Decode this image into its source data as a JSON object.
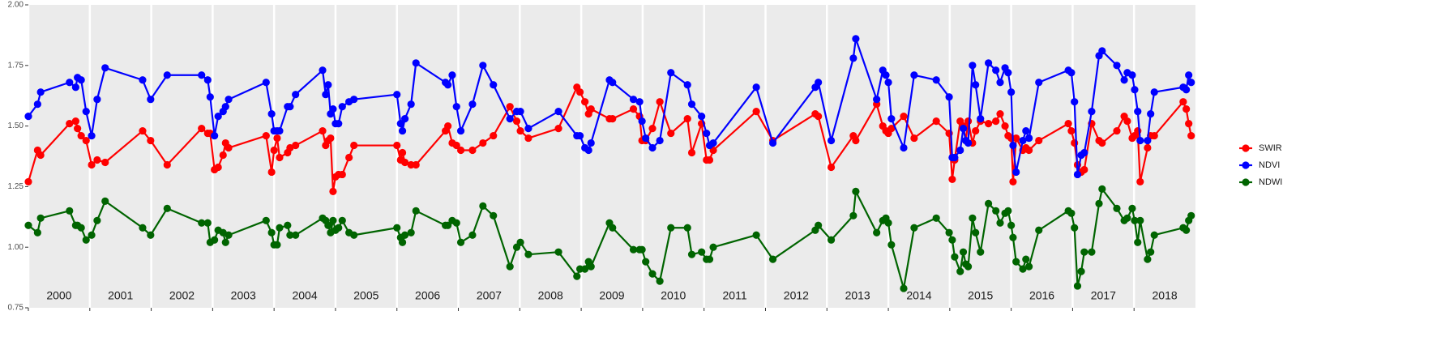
{
  "chart_data": {
    "type": "line",
    "x": [
      2000.0,
      2000.15,
      2000.2,
      2000.67,
      2000.77,
      2000.8,
      2000.86,
      2000.94,
      2001.03,
      2001.12,
      2001.25,
      2001.86,
      2001.99,
      2002.26,
      2002.82,
      2002.92,
      2002.96,
      2003.03,
      2003.09,
      2003.17,
      2003.21,
      2003.26,
      2003.87,
      2003.96,
      2004.0,
      2004.05,
      2004.09,
      2004.22,
      2004.26,
      2004.35,
      2004.79,
      2004.84,
      2004.88,
      2004.92,
      2004.96,
      2005.0,
      2005.05,
      2005.11,
      2005.22,
      2005.3,
      2006.0,
      2006.06,
      2006.09,
      2006.13,
      2006.23,
      2006.31,
      2006.79,
      2006.83,
      2006.9,
      2006.97,
      2007.04,
      2007.23,
      2007.4,
      2007.57,
      2007.84,
      2007.95,
      2008.01,
      2008.14,
      2008.63,
      2008.93,
      2008.98,
      2009.06,
      2009.12,
      2009.16,
      2009.46,
      2009.51,
      2009.85,
      2009.95,
      2009.99,
      2010.05,
      2010.16,
      2010.28,
      2010.46,
      2010.73,
      2010.8,
      2010.96,
      2011.04,
      2011.09,
      2011.15,
      2011.85,
      2012.12,
      2012.81,
      2012.86,
      2013.07,
      2013.43,
      2013.47,
      2013.81,
      2013.91,
      2013.96,
      2014.0,
      2014.05,
      2014.25,
      2014.42,
      2014.78,
      2014.99,
      2015.04,
      2015.08,
      2015.17,
      2015.22,
      2015.26,
      2015.3,
      2015.37,
      2015.42,
      2015.5,
      2015.63,
      2015.75,
      2015.82,
      2015.9,
      2015.95,
      2016.0,
      2016.03,
      2016.08,
      2016.19,
      2016.24,
      2016.29,
      2016.45,
      2016.93,
      2016.98,
      2017.03,
      2017.08,
      2017.14,
      2017.19,
      2017.31,
      2017.43,
      2017.48,
      2017.72,
      2017.84,
      2017.89,
      2017.97,
      2018.01,
      2018.06,
      2018.1,
      2018.22,
      2018.27,
      2018.33,
      2018.8,
      2018.85,
      2018.89,
      2018.93
    ],
    "series": [
      {
        "name": "SWIR",
        "color": "#ff0000",
        "values": [
          1.27,
          1.4,
          1.38,
          1.51,
          1.52,
          1.49,
          1.46,
          1.44,
          1.34,
          1.36,
          1.35,
          1.48,
          1.44,
          1.34,
          1.49,
          1.47,
          1.47,
          1.32,
          1.33,
          1.38,
          1.43,
          1.41,
          1.46,
          1.31,
          1.4,
          1.45,
          1.37,
          1.39,
          1.41,
          1.42,
          1.48,
          1.42,
          1.44,
          1.45,
          1.23,
          1.29,
          1.3,
          1.3,
          1.37,
          1.42,
          1.42,
          1.36,
          1.39,
          1.35,
          1.34,
          1.34,
          1.48,
          1.5,
          1.43,
          1.42,
          1.4,
          1.4,
          1.43,
          1.46,
          1.58,
          1.52,
          1.48,
          1.45,
          1.49,
          1.66,
          1.64,
          1.6,
          1.55,
          1.57,
          1.53,
          1.53,
          1.57,
          1.54,
          1.44,
          1.44,
          1.49,
          1.6,
          1.47,
          1.53,
          1.39,
          1.51,
          1.36,
          1.36,
          1.4,
          1.56,
          1.44,
          1.55,
          1.54,
          1.33,
          1.46,
          1.44,
          1.59,
          1.5,
          1.48,
          1.47,
          1.49,
          1.54,
          1.45,
          1.52,
          1.47,
          1.28,
          1.36,
          1.52,
          1.5,
          1.44,
          1.52,
          1.43,
          1.48,
          1.52,
          1.51,
          1.52,
          1.55,
          1.5,
          1.46,
          1.45,
          1.27,
          1.45,
          1.4,
          1.41,
          1.4,
          1.44,
          1.51,
          1.48,
          1.43,
          1.34,
          1.31,
          1.32,
          1.51,
          1.44,
          1.43,
          1.48,
          1.54,
          1.52,
          1.45,
          1.46,
          1.48,
          1.27,
          1.41,
          1.46,
          1.46,
          1.6,
          1.57,
          1.51,
          1.46
        ]
      },
      {
        "name": "NDVI",
        "color": "#0000ff",
        "values": [
          1.54,
          1.59,
          1.64,
          1.68,
          1.66,
          1.7,
          1.69,
          1.56,
          1.46,
          1.61,
          1.74,
          1.69,
          1.61,
          1.71,
          1.71,
          1.69,
          1.62,
          1.46,
          1.54,
          1.56,
          1.58,
          1.61,
          1.68,
          1.55,
          1.48,
          1.48,
          1.48,
          1.58,
          1.58,
          1.63,
          1.73,
          1.63,
          1.67,
          1.55,
          1.57,
          1.51,
          1.51,
          1.58,
          1.6,
          1.61,
          1.63,
          1.51,
          1.48,
          1.53,
          1.59,
          1.76,
          1.68,
          1.67,
          1.71,
          1.58,
          1.48,
          1.59,
          1.75,
          1.67,
          1.53,
          1.56,
          1.56,
          1.49,
          1.56,
          1.46,
          1.46,
          1.41,
          1.4,
          1.43,
          1.69,
          1.68,
          1.61,
          1.6,
          1.52,
          1.45,
          1.41,
          1.44,
          1.72,
          1.67,
          1.59,
          1.54,
          1.47,
          1.42,
          1.43,
          1.66,
          1.43,
          1.66,
          1.68,
          1.44,
          1.78,
          1.86,
          1.61,
          1.73,
          1.71,
          1.68,
          1.53,
          1.41,
          1.71,
          1.69,
          1.62,
          1.37,
          1.37,
          1.4,
          1.49,
          1.44,
          1.43,
          1.75,
          1.67,
          1.53,
          1.76,
          1.73,
          1.68,
          1.74,
          1.72,
          1.64,
          1.42,
          1.31,
          1.44,
          1.48,
          1.45,
          1.68,
          1.73,
          1.72,
          1.6,
          1.3,
          1.38,
          1.39,
          1.56,
          1.79,
          1.81,
          1.75,
          1.69,
          1.72,
          1.71,
          1.65,
          1.56,
          1.44,
          1.44,
          1.55,
          1.64,
          1.66,
          1.65,
          1.71,
          1.68
        ]
      },
      {
        "name": "NDWI",
        "color": "#006400",
        "values": [
          1.09,
          1.06,
          1.12,
          1.15,
          1.09,
          1.09,
          1.08,
          1.03,
          1.05,
          1.11,
          1.19,
          1.08,
          1.05,
          1.16,
          1.1,
          1.1,
          1.02,
          1.03,
          1.07,
          1.06,
          1.02,
          1.05,
          1.11,
          1.06,
          1.01,
          1.01,
          1.08,
          1.09,
          1.05,
          1.05,
          1.12,
          1.11,
          1.09,
          1.06,
          1.11,
          1.07,
          1.08,
          1.11,
          1.06,
          1.05,
          1.08,
          1.04,
          1.02,
          1.05,
          1.06,
          1.15,
          1.09,
          1.09,
          1.11,
          1.1,
          1.02,
          1.05,
          1.17,
          1.13,
          0.92,
          1.0,
          1.02,
          0.97,
          0.98,
          0.88,
          0.91,
          0.91,
          0.94,
          0.92,
          1.1,
          1.08,
          0.99,
          0.99,
          0.99,
          0.94,
          0.89,
          0.86,
          1.08,
          1.08,
          0.97,
          0.98,
          0.95,
          0.95,
          1.0,
          1.05,
          0.95,
          1.07,
          1.09,
          1.03,
          1.13,
          1.23,
          1.06,
          1.11,
          1.12,
          1.1,
          1.01,
          0.83,
          1.08,
          1.12,
          1.06,
          1.03,
          0.96,
          0.9,
          0.98,
          0.93,
          0.92,
          1.12,
          1.06,
          0.98,
          1.18,
          1.15,
          1.1,
          1.14,
          1.15,
          1.09,
          1.04,
          0.94,
          0.91,
          0.95,
          0.92,
          1.07,
          1.15,
          1.14,
          1.08,
          0.84,
          0.9,
          0.98,
          0.98,
          1.18,
          1.24,
          1.16,
          1.11,
          1.12,
          1.16,
          1.11,
          1.02,
          1.11,
          0.95,
          0.98,
          1.05,
          1.08,
          1.07,
          1.11,
          1.13
        ]
      }
    ],
    "xlim": [
      2000,
      2019
    ],
    "xticks": [
      2000,
      2001,
      2002,
      2003,
      2004,
      2005,
      2006,
      2007,
      2008,
      2009,
      2010,
      2011,
      2012,
      2013,
      2014,
      2015,
      2016,
      2017,
      2018
    ],
    "ylim": [
      0.75,
      2.0
    ],
    "yticks": [
      {
        "value": 0.75,
        "label": "0.75"
      },
      {
        "value": 1.0,
        "label": "1.00"
      },
      {
        "value": 1.25,
        "label": "1.25"
      },
      {
        "value": 1.5,
        "label": "1.50"
      },
      {
        "value": 1.75,
        "label": "1.75"
      },
      {
        "value": 2.0,
        "label": "2.00"
      }
    ],
    "grid": true,
    "legend": "right"
  }
}
